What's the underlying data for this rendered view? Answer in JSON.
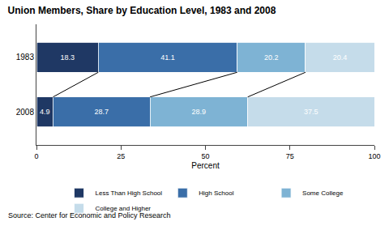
{
  "chart_data": {
    "type": "bar",
    "orientation": "horizontal",
    "stacked": true,
    "data_labels": true,
    "grid": false,
    "legend": "bottom",
    "title": "Union Members, Share by Education Level, 1983 and 2008",
    "xlabel": "Percent",
    "source": "Source: Center for Economic and Policy Research",
    "categories": [
      "1983",
      "2008"
    ],
    "series": [
      {
        "name": "Less Than High School",
        "color": "#1f3864",
        "values": [
          18.3,
          4.9
        ]
      },
      {
        "name": "High School",
        "color": "#3a6ea8",
        "values": [
          41.1,
          28.7
        ]
      },
      {
        "name": "Some College",
        "color": "#7eb3d4",
        "values": [
          20.2,
          28.9
        ]
      },
      {
        "name": "College and Higher",
        "color": "#c5dcea",
        "values": [
          20.4,
          37.5
        ]
      }
    ],
    "xlim": [
      0,
      100
    ],
    "xticks": [
      0,
      25,
      50,
      75,
      100
    ]
  }
}
